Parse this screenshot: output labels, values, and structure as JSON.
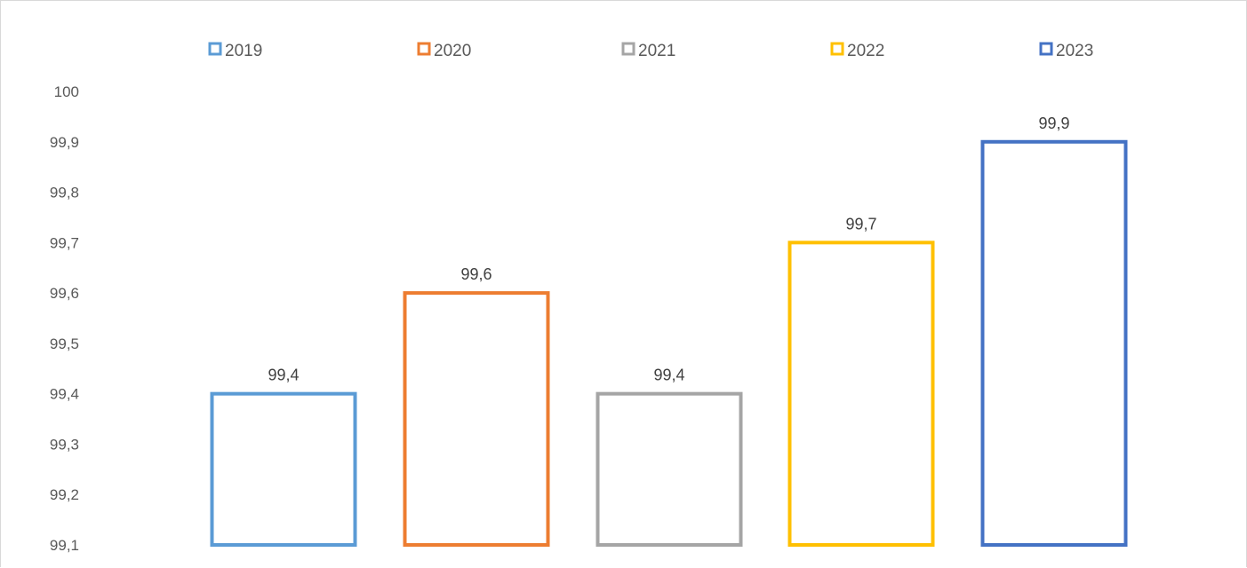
{
  "chart_data": {
    "type": "bar",
    "title": "",
    "xlabel": "",
    "ylabel": "",
    "ylim": [
      99.1,
      100
    ],
    "y_ticks": [
      "100",
      "99,9",
      "99,8",
      "99,7",
      "99,6",
      "99,5",
      "99,4",
      "99,3",
      "99,2",
      "99,1"
    ],
    "grid": false,
    "legend_position": "top",
    "bar_style": "outline",
    "series": [
      {
        "name": "2019",
        "value": 99.4,
        "label": "99,4",
        "color": "#5b9bd5"
      },
      {
        "name": "2020",
        "value": 99.6,
        "label": "99,6",
        "color": "#ed7d31"
      },
      {
        "name": "2021",
        "value": 99.4,
        "label": "99,4",
        "color": "#a5a5a5"
      },
      {
        "name": "2022",
        "value": 99.7,
        "label": "99,7",
        "color": "#ffc000"
      },
      {
        "name": "2023",
        "value": 99.9,
        "label": "99,9",
        "color": "#4472c4"
      }
    ]
  }
}
